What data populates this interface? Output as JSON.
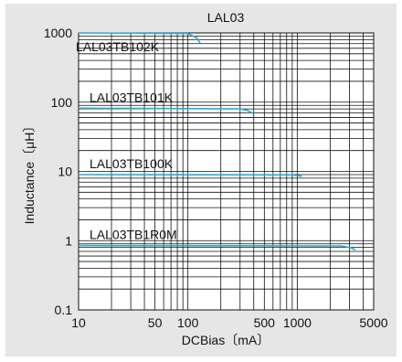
{
  "chart_data": {
    "type": "line",
    "title": "LAL03",
    "xlabel": "DCBias〔mA〕",
    "ylabel": "Inductance〔μH〕",
    "xscale": "log",
    "yscale": "log",
    "xlim": [
      10,
      5000
    ],
    "ylim": [
      0.1,
      1000
    ],
    "grid": true,
    "xticks": [
      10,
      50,
      100,
      500,
      1000,
      5000
    ],
    "xtick_labels": [
      "10",
      "50",
      "100",
      "500",
      "1000",
      "5000"
    ],
    "yticks": [
      0.1,
      1,
      10,
      100,
      1000
    ],
    "ytick_labels": [
      "0.1",
      "1",
      "10",
      "100",
      "1000"
    ],
    "series_color": "#2aa9d8",
    "series": [
      {
        "name": "LAL03TB102K",
        "x": [
          10,
          100,
          120,
          130
        ],
        "y": [
          1000,
          980,
          850,
          700
        ]
      },
      {
        "name": "LAL03TB101K",
        "x": [
          10,
          300,
          350,
          400
        ],
        "y": [
          82,
          80,
          76,
          68
        ]
      },
      {
        "name": "LAL03TB100K",
        "x": [
          10,
          900,
          1000,
          1100
        ],
        "y": [
          9.0,
          8.9,
          8.7,
          8.5
        ]
      },
      {
        "name": "LAL03TB1R0M",
        "x": [
          10,
          2500,
          3000,
          3400
        ],
        "y": [
          0.85,
          0.84,
          0.8,
          0.74
        ]
      }
    ]
  }
}
